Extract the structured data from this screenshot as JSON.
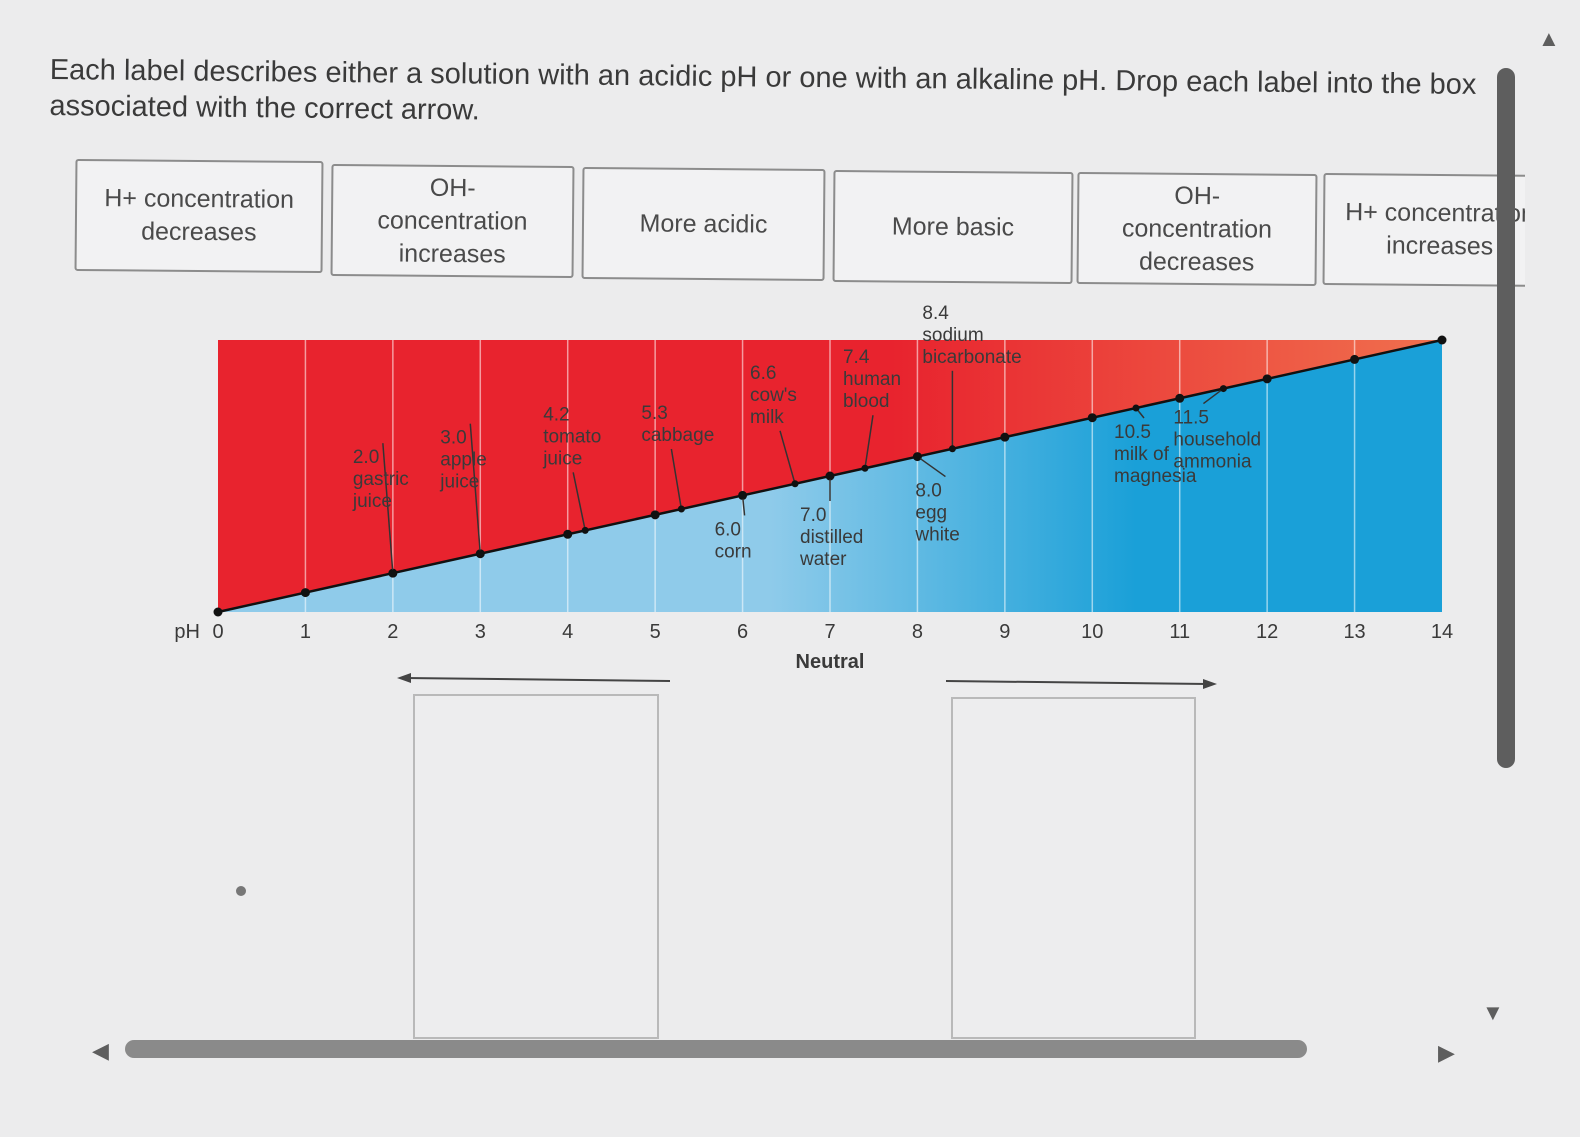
{
  "instructions": "Each label describes either a solution with an acidic pH or one with an alkaline pH. Drop each label into the box associated with the correct arrow.",
  "labels": [
    {
      "line1": "H+ concentration",
      "line2": "decreases",
      "line3": ""
    },
    {
      "line1": "OH-",
      "line2": "concentration",
      "line3": "increases"
    },
    {
      "line1": "More acidic",
      "line2": "",
      "line3": ""
    },
    {
      "line1": "More basic",
      "line2": "",
      "line3": ""
    },
    {
      "line1": "OH-",
      "line2": "concentration",
      "line3": "decreases"
    },
    {
      "line1": "H+ concentration",
      "line2": "increases",
      "line3": ""
    }
  ],
  "chart_data": {
    "type": "ph-scale",
    "axis_label": "pH",
    "ticks": [
      "0",
      "1",
      "2",
      "3",
      "4",
      "5",
      "6",
      "7",
      "8",
      "9",
      "10",
      "11",
      "12",
      "13",
      "14"
    ],
    "neutral_label": "Neutral",
    "colors": {
      "acid": "#e8232e",
      "acid_light": "#f0704e",
      "base": "#1aa0d8",
      "base_light": "#8fcbea"
    },
    "points": [
      {
        "ph": 2.0,
        "lines": [
          "2.0",
          "gastric",
          "juice"
        ]
      },
      {
        "ph": 3.0,
        "lines": [
          "3.0",
          "apple",
          "juice"
        ]
      },
      {
        "ph": 4.2,
        "lines": [
          "4.2",
          "tomato",
          "juice"
        ]
      },
      {
        "ph": 5.3,
        "lines": [
          "5.3",
          "cabbage"
        ]
      },
      {
        "ph": 6.0,
        "lines": [
          "6.0",
          "corn"
        ]
      },
      {
        "ph": 6.6,
        "lines": [
          "6.6",
          "cow's",
          "milk"
        ]
      },
      {
        "ph": 7.0,
        "lines": [
          "7.0",
          "distilled",
          "water"
        ]
      },
      {
        "ph": 7.4,
        "lines": [
          "7.4",
          "human",
          "blood"
        ]
      },
      {
        "ph": 8.0,
        "lines": [
          "8.0",
          "egg",
          "white"
        ]
      },
      {
        "ph": 8.4,
        "lines": [
          "8.4",
          "sodium",
          "bicarbonate"
        ]
      },
      {
        "ph": 10.5,
        "lines": [
          "10.5",
          "milk of",
          "magnesia"
        ]
      },
      {
        "ph": 11.5,
        "lines": [
          "11.5",
          "household",
          "ammonia"
        ]
      }
    ]
  }
}
